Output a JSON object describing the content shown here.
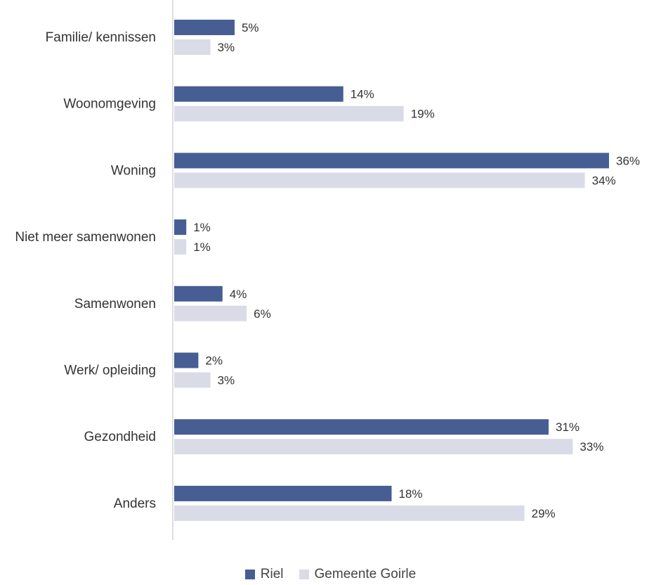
{
  "chart_data": {
    "type": "bar",
    "orientation": "horizontal",
    "categories": [
      "Familie/ kennissen",
      "Woonomgeving",
      "Woning",
      "Niet meer samenwonen",
      "Samenwonen",
      "Werk/ opleiding",
      "Gezondheid",
      "Anders"
    ],
    "series": [
      {
        "name": "Riel",
        "color": "#465e93",
        "values": [
          5,
          14,
          36,
          1,
          4,
          2,
          31,
          18
        ],
        "labels": [
          "5%",
          "14%",
          "36%",
          "1%",
          "4%",
          "2%",
          "31%",
          "18%"
        ]
      },
      {
        "name": "Gemeente Goirle",
        "color": "#d9dce6",
        "values": [
          3,
          19,
          34,
          1,
          6,
          3,
          33,
          29
        ],
        "labels": [
          "3%",
          "19%",
          "34%",
          "1%",
          "6%",
          "3%",
          "33%",
          "29%"
        ]
      }
    ],
    "xlim": [
      0,
      36
    ],
    "unit": "%",
    "grid": false,
    "legend_position": "bottom"
  }
}
